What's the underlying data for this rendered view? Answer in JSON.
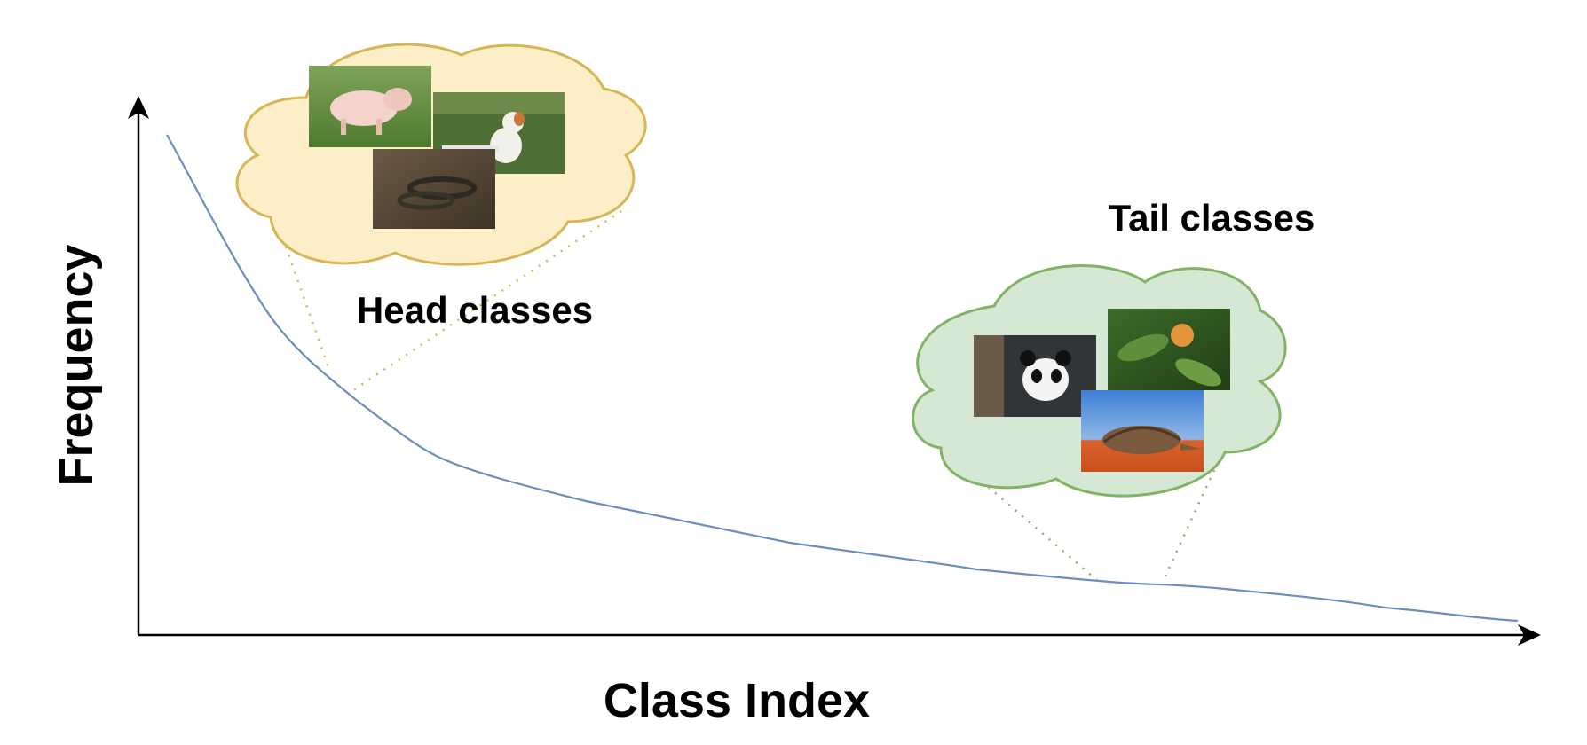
{
  "diagram": {
    "axes": {
      "x_label": "Class Index",
      "y_label": "Frequency"
    },
    "groups": {
      "head": {
        "label": "Head classes",
        "photos": [
          "pig-photo",
          "dog-photo",
          "snake-photo"
        ],
        "cloud_color": "#fcefc7",
        "cloud_stroke": "#d6b656"
      },
      "tail": {
        "label": "Tail classes",
        "photos": [
          "panda-photo",
          "flower-photo",
          "pangolin-photo"
        ],
        "cloud_color": "#d5e8d4",
        "cloud_stroke": "#82b366"
      }
    },
    "curve_color": "#6c8ebf"
  }
}
